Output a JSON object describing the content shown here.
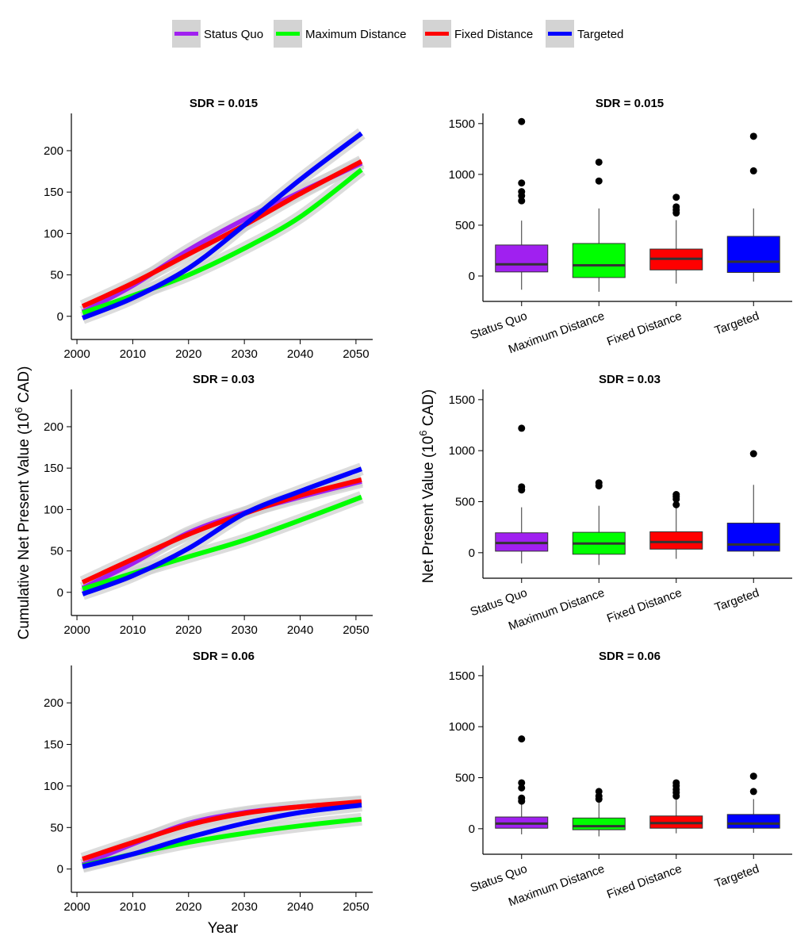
{
  "legend": {
    "position": "top",
    "items": [
      {
        "label": "Status Quo",
        "color": "#A020F0"
      },
      {
        "label": "Maximum Distance",
        "color": "#00FF00"
      },
      {
        "label": "Fixed Distance",
        "color": "#FF0000"
      },
      {
        "label": "Targeted",
        "color": "#0000FF"
      }
    ]
  },
  "left_ylabel_parts": [
    "Cumulative Net Present Value (10",
    "6",
    " CAD)"
  ],
  "right_ylabel_parts": [
    "Net Present Value (10",
    "6",
    " CAD)"
  ],
  "left_xlabel": "Year",
  "chart_data": [
    {
      "type": "line",
      "title": "SDR = 0.015",
      "xlabel": "",
      "ylabel": "",
      "xlim": [
        1999,
        2053
      ],
      "ylim": [
        -28,
        245
      ],
      "xticks": [
        2000,
        2010,
        2020,
        2030,
        2040,
        2050
      ],
      "yticks": [
        0,
        50,
        100,
        150,
        200
      ],
      "confidence_band": true,
      "x": [
        2001,
        2010,
        2020,
        2030,
        2040,
        2051
      ],
      "series": [
        {
          "name": "Status Quo",
          "values": [
            5,
            37,
            80,
            117,
            150,
            185
          ]
        },
        {
          "name": "Maximum Distance",
          "values": [
            4,
            25,
            50,
            82,
            120,
            177
          ]
        },
        {
          "name": "Fixed Distance",
          "values": [
            12,
            40,
            75,
            110,
            148,
            187
          ]
        },
        {
          "name": "Targeted",
          "values": [
            -2,
            22,
            58,
            110,
            165,
            221
          ]
        }
      ]
    },
    {
      "type": "box",
      "title": "SDR = 0.015",
      "xlabel": "",
      "ylabel": "",
      "ylim": [
        -250,
        1600
      ],
      "yticks": [
        0,
        500,
        1000,
        1500
      ],
      "categories": [
        "Status Quo",
        "Maximum Distance",
        "Fixed Distance",
        "Targeted"
      ],
      "boxes": [
        {
          "q1": 40,
          "median": 115,
          "q3": 305,
          "whisker_low": -135,
          "whisker_high": 545,
          "outliers": [
            740,
            790,
            830,
            915,
            1520
          ]
        },
        {
          "q1": -15,
          "median": 105,
          "q3": 320,
          "whisker_low": -155,
          "whisker_high": 665,
          "outliers": [
            935,
            1120
          ]
        },
        {
          "q1": 60,
          "median": 170,
          "q3": 265,
          "whisker_low": -75,
          "whisker_high": 550,
          "outliers": [
            620,
            650,
            680,
            775
          ]
        },
        {
          "q1": 35,
          "median": 140,
          "q3": 390,
          "whisker_low": -55,
          "whisker_high": 665,
          "outliers": [
            1035,
            1375
          ]
        }
      ]
    },
    {
      "type": "line",
      "title": "SDR = 0.03",
      "xlabel": "",
      "ylabel": "",
      "xlim": [
        1999,
        2053
      ],
      "ylim": [
        -28,
        245
      ],
      "xticks": [
        2000,
        2010,
        2020,
        2030,
        2040,
        2050
      ],
      "yticks": [
        0,
        50,
        100,
        150,
        200
      ],
      "confidence_band": true,
      "x": [
        2001,
        2010,
        2020,
        2030,
        2040,
        2051
      ],
      "series": [
        {
          "name": "Status Quo",
          "values": [
            5,
            35,
            72,
            96,
            115,
            134
          ]
        },
        {
          "name": "Maximum Distance",
          "values": [
            4,
            23,
            43,
            63,
            87,
            115
          ]
        },
        {
          "name": "Fixed Distance",
          "values": [
            12,
            40,
            70,
            95,
            117,
            136
          ]
        },
        {
          "name": "Targeted",
          "values": [
            -2,
            20,
            53,
            95,
            122,
            149
          ]
        }
      ]
    },
    {
      "type": "box",
      "title": "SDR = 0.03",
      "xlabel": "",
      "ylabel": "",
      "ylim": [
        -250,
        1600
      ],
      "yticks": [
        0,
        500,
        1000,
        1500
      ],
      "categories": [
        "Status Quo",
        "Maximum Distance",
        "Fixed Distance",
        "Targeted"
      ],
      "boxes": [
        {
          "q1": 15,
          "median": 95,
          "q3": 195,
          "whisker_low": -105,
          "whisker_high": 445,
          "outliers": [
            615,
            645,
            1220
          ]
        },
        {
          "q1": -15,
          "median": 90,
          "q3": 200,
          "whisker_low": -120,
          "whisker_high": 460,
          "outliers": [
            655,
            685
          ]
        },
        {
          "q1": 35,
          "median": 105,
          "q3": 205,
          "whisker_low": -60,
          "whisker_high": 460,
          "outliers": [
            470,
            525,
            550,
            570
          ]
        },
        {
          "q1": 15,
          "median": 80,
          "q3": 290,
          "whisker_low": -35,
          "whisker_high": 665,
          "outliers": [
            970
          ]
        }
      ]
    },
    {
      "type": "line",
      "title": "SDR = 0.06",
      "xlabel": "Year",
      "ylabel": "",
      "xlim": [
        1999,
        2053
      ],
      "ylim": [
        -28,
        245
      ],
      "xticks": [
        2000,
        2010,
        2020,
        2030,
        2040,
        2050
      ],
      "yticks": [
        0,
        50,
        100,
        150,
        200
      ],
      "confidence_band": true,
      "x": [
        2001,
        2010,
        2020,
        2030,
        2040,
        2051
      ],
      "series": [
        {
          "name": "Status Quo",
          "values": [
            5,
            30,
            55,
            68,
            75,
            80
          ]
        },
        {
          "name": "Maximum Distance",
          "values": [
            4,
            18,
            32,
            43,
            52,
            60
          ]
        },
        {
          "name": "Fixed Distance",
          "values": [
            12,
            32,
            53,
            67,
            75,
            81
          ]
        },
        {
          "name": "Targeted",
          "values": [
            3,
            18,
            38,
            55,
            68,
            77
          ]
        }
      ]
    },
    {
      "type": "box",
      "title": "SDR = 0.06",
      "xlabel": "",
      "ylabel": "",
      "ylim": [
        -250,
        1600
      ],
      "yticks": [
        0,
        500,
        1000,
        1500
      ],
      "categories": [
        "Status Quo",
        "Maximum Distance",
        "Fixed Distance",
        "Targeted"
      ],
      "boxes": [
        {
          "q1": 5,
          "median": 50,
          "q3": 115,
          "whisker_low": -55,
          "whisker_high": 250,
          "outliers": [
            270,
            300,
            400,
            450,
            880
          ]
        },
        {
          "q1": -10,
          "median": 25,
          "q3": 105,
          "whisker_low": -75,
          "whisker_high": 280,
          "outliers": [
            290,
            320,
            365
          ]
        },
        {
          "q1": 5,
          "median": 55,
          "q3": 125,
          "whisker_low": -45,
          "whisker_high": 295,
          "outliers": [
            320,
            355,
            385,
            420,
            450
          ]
        },
        {
          "q1": 5,
          "median": 50,
          "q3": 140,
          "whisker_low": -40,
          "whisker_high": 290,
          "outliers": [
            365,
            515
          ]
        }
      ]
    }
  ]
}
